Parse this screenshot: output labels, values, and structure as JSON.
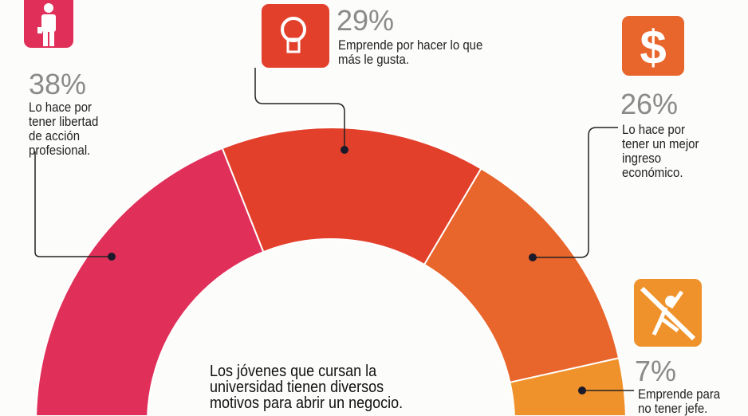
{
  "chart_data": {
    "type": "pie",
    "variant": "half-donut",
    "categories": [
      "Lo hace por tener libertad de acción profesional.",
      "Emprende por hacer lo que más le gusta.",
      "Lo hace por tener un mejor ingreso económico.",
      "Emprende para no tener jefe."
    ],
    "values": [
      38,
      29,
      26,
      7
    ],
    "value_labels": [
      "38%",
      "29%",
      "26%",
      "7%"
    ],
    "colors": [
      "#e0305a",
      "#e2402b",
      "#e8652b",
      "#f0922b"
    ],
    "icons": [
      "businessman-icon",
      "lightbulb-icon",
      "dollar-sign-icon",
      "no-boss-icon"
    ],
    "center_text": [
      "Los jóvenes que cursan la",
      "universidad tienen diversos",
      "motivos para abrir un negocio."
    ]
  }
}
